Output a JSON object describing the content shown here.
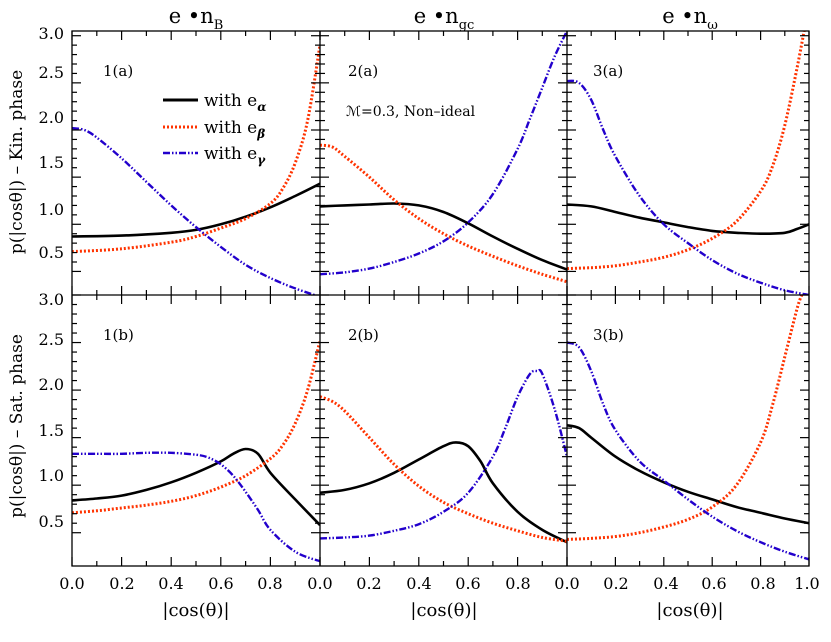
{
  "figure": {
    "col_titles": [
      {
        "base": "e •n",
        "sub": "B"
      },
      {
        "base": "e •n",
        "sub": "gc"
      },
      {
        "base": "e •n",
        "sub": "ω"
      }
    ],
    "row_labels": [
      "p(|cosθ|) – Kin. phase",
      "p(|cosθ|) – Sat. phase"
    ],
    "xlabel": "|cos(θ)|",
    "panel_tags": [
      "1(a)",
      "2(a)",
      "3(a)",
      "1(b)",
      "2(b)",
      "3(b)"
    ],
    "annotation": "ℳ=0.3, Non–ideal",
    "legend": [
      {
        "label": "with e",
        "sub": "α",
        "color": "#000000",
        "style": "solid"
      },
      {
        "label": "with e",
        "sub": "β",
        "color": "#ff3300",
        "style": "dotted"
      },
      {
        "label": "with e",
        "sub": "γ",
        "color": "#2200cc",
        "style": "dashdotdot"
      }
    ],
    "x_ticks": [
      "0.0",
      "0.2",
      "0.4",
      "0.6",
      "0.8",
      "0.0",
      "0.2",
      "0.4",
      "0.6",
      "0.8",
      "0.0",
      "0.2",
      "0.4",
      "0.6",
      "0.8",
      "1.0"
    ],
    "y_ticks": [
      "0.5",
      "1.0",
      "1.5",
      "2.0",
      "2.5",
      "3.0"
    ]
  },
  "chart_data": [
    {
      "type": "line",
      "panel": "1(a)",
      "xlim": [
        0,
        1
      ],
      "ylim": [
        0.25,
        3.05
      ],
      "series": [
        {
          "name": "with eα",
          "color": "#000000",
          "x": [
            0,
            0.2,
            0.4,
            0.5,
            0.6,
            0.7,
            0.8,
            0.9,
            1.0
          ],
          "y": [
            0.87,
            0.88,
            0.91,
            0.94,
            1.0,
            1.08,
            1.18,
            1.3,
            1.43
          ]
        },
        {
          "name": "with eβ",
          "color": "#ff3300",
          "x": [
            0,
            0.2,
            0.4,
            0.5,
            0.6,
            0.7,
            0.8,
            0.85,
            0.9,
            0.95,
            1.0
          ],
          "y": [
            0.71,
            0.74,
            0.81,
            0.87,
            0.96,
            1.06,
            1.22,
            1.38,
            1.65,
            2.1,
            2.9
          ]
        },
        {
          "name": "with eγ",
          "color": "#2200cc",
          "x": [
            0,
            0.05,
            0.1,
            0.2,
            0.3,
            0.4,
            0.5,
            0.6,
            0.7,
            0.8,
            0.9,
            1.0
          ],
          "y": [
            2.02,
            2.0,
            1.92,
            1.7,
            1.45,
            1.2,
            0.97,
            0.76,
            0.57,
            0.43,
            0.32,
            0.23
          ]
        }
      ]
    },
    {
      "type": "line",
      "panel": "2(a)",
      "xlim": [
        0,
        1
      ],
      "ylim": [
        0.25,
        3.05
      ],
      "series": [
        {
          "name": "with eα",
          "color": "#000000",
          "x": [
            0,
            0.1,
            0.2,
            0.3,
            0.4,
            0.5,
            0.6,
            0.7,
            0.8,
            0.9,
            1.0
          ],
          "y": [
            1.19,
            1.2,
            1.21,
            1.22,
            1.2,
            1.13,
            1.01,
            0.87,
            0.74,
            0.62,
            0.52
          ]
        },
        {
          "name": "with eβ",
          "color": "#ff3300",
          "x": [
            0,
            0.05,
            0.1,
            0.2,
            0.3,
            0.4,
            0.5,
            0.6,
            0.7,
            0.8,
            0.9,
            1.0
          ],
          "y": [
            1.84,
            1.82,
            1.72,
            1.5,
            1.26,
            1.06,
            0.9,
            0.77,
            0.66,
            0.56,
            0.47,
            0.39
          ]
        },
        {
          "name": "with eγ",
          "color": "#2200cc",
          "x": [
            0,
            0.1,
            0.2,
            0.3,
            0.4,
            0.5,
            0.6,
            0.7,
            0.8,
            0.85,
            0.9,
            0.95,
            1.0
          ],
          "y": [
            0.47,
            0.49,
            0.53,
            0.6,
            0.69,
            0.82,
            1.02,
            1.32,
            1.8,
            2.12,
            2.45,
            2.78,
            3.05
          ]
        }
      ]
    },
    {
      "type": "line",
      "panel": "3(a)",
      "xlim": [
        0,
        1
      ],
      "ylim": [
        0.25,
        3.05
      ],
      "series": [
        {
          "name": "with eα",
          "color": "#000000",
          "x": [
            0,
            0.1,
            0.2,
            0.3,
            0.4,
            0.5,
            0.6,
            0.7,
            0.8,
            0.9,
            0.95,
            1.0
          ],
          "y": [
            1.21,
            1.19,
            1.13,
            1.07,
            1.02,
            0.97,
            0.93,
            0.91,
            0.9,
            0.91,
            0.95,
            1.0
          ]
        },
        {
          "name": "with eβ",
          "color": "#ff3300",
          "x": [
            0,
            0.1,
            0.2,
            0.3,
            0.4,
            0.5,
            0.6,
            0.7,
            0.8,
            0.85,
            0.9,
            0.95,
            0.98
          ],
          "y": [
            0.53,
            0.54,
            0.56,
            0.6,
            0.65,
            0.73,
            0.85,
            1.03,
            1.35,
            1.62,
            2.05,
            2.65,
            3.05
          ]
        },
        {
          "name": "with eγ",
          "color": "#2200cc",
          "x": [
            0,
            0.05,
            0.1,
            0.15,
            0.2,
            0.3,
            0.4,
            0.5,
            0.6,
            0.7,
            0.8,
            0.9,
            1.0
          ],
          "y": [
            2.52,
            2.5,
            2.32,
            2.0,
            1.72,
            1.3,
            1.0,
            0.8,
            0.62,
            0.48,
            0.38,
            0.3,
            0.25
          ]
        }
      ]
    },
    {
      "type": "line",
      "panel": "1(b)",
      "xlim": [
        0,
        1
      ],
      "ylim": [
        0.15,
        3.0
      ],
      "series": [
        {
          "name": "with eα",
          "color": "#000000",
          "x": [
            0,
            0.1,
            0.2,
            0.3,
            0.4,
            0.5,
            0.6,
            0.65,
            0.7,
            0.75,
            0.8,
            0.9,
            1.0
          ],
          "y": [
            0.84,
            0.86,
            0.89,
            0.95,
            1.03,
            1.13,
            1.25,
            1.33,
            1.38,
            1.33,
            1.13,
            0.85,
            0.58
          ]
        },
        {
          "name": "with eβ",
          "color": "#ff3300",
          "x": [
            0,
            0.1,
            0.2,
            0.3,
            0.4,
            0.5,
            0.6,
            0.7,
            0.8,
            0.85,
            0.9,
            0.95,
            1.0
          ],
          "y": [
            0.71,
            0.73,
            0.76,
            0.79,
            0.83,
            0.89,
            0.98,
            1.1,
            1.28,
            1.42,
            1.65,
            2.0,
            2.52
          ]
        },
        {
          "name": "with eγ",
          "color": "#2200cc",
          "x": [
            0,
            0.1,
            0.2,
            0.3,
            0.4,
            0.5,
            0.55,
            0.6,
            0.65,
            0.7,
            0.75,
            0.8,
            0.9,
            1.0
          ],
          "y": [
            1.33,
            1.33,
            1.33,
            1.34,
            1.34,
            1.32,
            1.29,
            1.22,
            1.1,
            0.93,
            0.74,
            0.53,
            0.3,
            0.2
          ]
        }
      ]
    },
    {
      "type": "line",
      "panel": "2(b)",
      "xlim": [
        0,
        1
      ],
      "ylim": [
        0.15,
        3.0
      ],
      "series": [
        {
          "name": "with eα",
          "color": "#000000",
          "x": [
            0,
            0.1,
            0.2,
            0.3,
            0.4,
            0.5,
            0.55,
            0.6,
            0.65,
            0.7,
            0.8,
            0.9,
            1.0
          ],
          "y": [
            0.92,
            0.95,
            1.02,
            1.13,
            1.27,
            1.41,
            1.45,
            1.41,
            1.25,
            1.02,
            0.72,
            0.53,
            0.4
          ]
        },
        {
          "name": "with eβ",
          "color": "#ff3300",
          "x": [
            0,
            0.05,
            0.1,
            0.2,
            0.3,
            0.4,
            0.5,
            0.6,
            0.7,
            0.8,
            0.9,
            1.0
          ],
          "y": [
            1.93,
            1.88,
            1.78,
            1.5,
            1.22,
            0.99,
            0.82,
            0.7,
            0.6,
            0.52,
            0.45,
            0.41
          ]
        },
        {
          "name": "with eγ",
          "color": "#2200cc",
          "x": [
            0,
            0.1,
            0.2,
            0.3,
            0.4,
            0.5,
            0.6,
            0.7,
            0.75,
            0.8,
            0.85,
            0.88,
            0.9,
            0.95,
            1.0
          ],
          "y": [
            0.44,
            0.45,
            0.47,
            0.52,
            0.59,
            0.72,
            0.92,
            1.3,
            1.6,
            1.93,
            2.17,
            2.2,
            2.17,
            1.8,
            1.3
          ]
        }
      ]
    },
    {
      "type": "line",
      "panel": "3(b)",
      "xlim": [
        0,
        1
      ],
      "ylim": [
        0.15,
        3.0
      ],
      "series": [
        {
          "name": "with eα",
          "color": "#000000",
          "x": [
            0,
            0.05,
            0.1,
            0.2,
            0.3,
            0.4,
            0.5,
            0.6,
            0.7,
            0.8,
            0.9,
            1.0
          ],
          "y": [
            1.63,
            1.6,
            1.5,
            1.3,
            1.15,
            1.03,
            0.93,
            0.85,
            0.77,
            0.71,
            0.65,
            0.6
          ]
        },
        {
          "name": "with eβ",
          "color": "#ff3300",
          "x": [
            0,
            0.1,
            0.2,
            0.3,
            0.4,
            0.5,
            0.6,
            0.7,
            0.8,
            0.85,
            0.9,
            0.95,
            0.97
          ],
          "y": [
            0.43,
            0.44,
            0.46,
            0.5,
            0.56,
            0.64,
            0.77,
            1.0,
            1.45,
            1.85,
            2.35,
            2.85,
            3.0
          ]
        },
        {
          "name": "with eγ",
          "color": "#2200cc",
          "x": [
            0,
            0.05,
            0.1,
            0.15,
            0.2,
            0.3,
            0.4,
            0.5,
            0.6,
            0.7,
            0.8,
            0.9,
            1.0
          ],
          "y": [
            2.5,
            2.45,
            2.2,
            1.85,
            1.58,
            1.25,
            1.05,
            0.85,
            0.67,
            0.52,
            0.4,
            0.3,
            0.22
          ]
        }
      ]
    }
  ]
}
